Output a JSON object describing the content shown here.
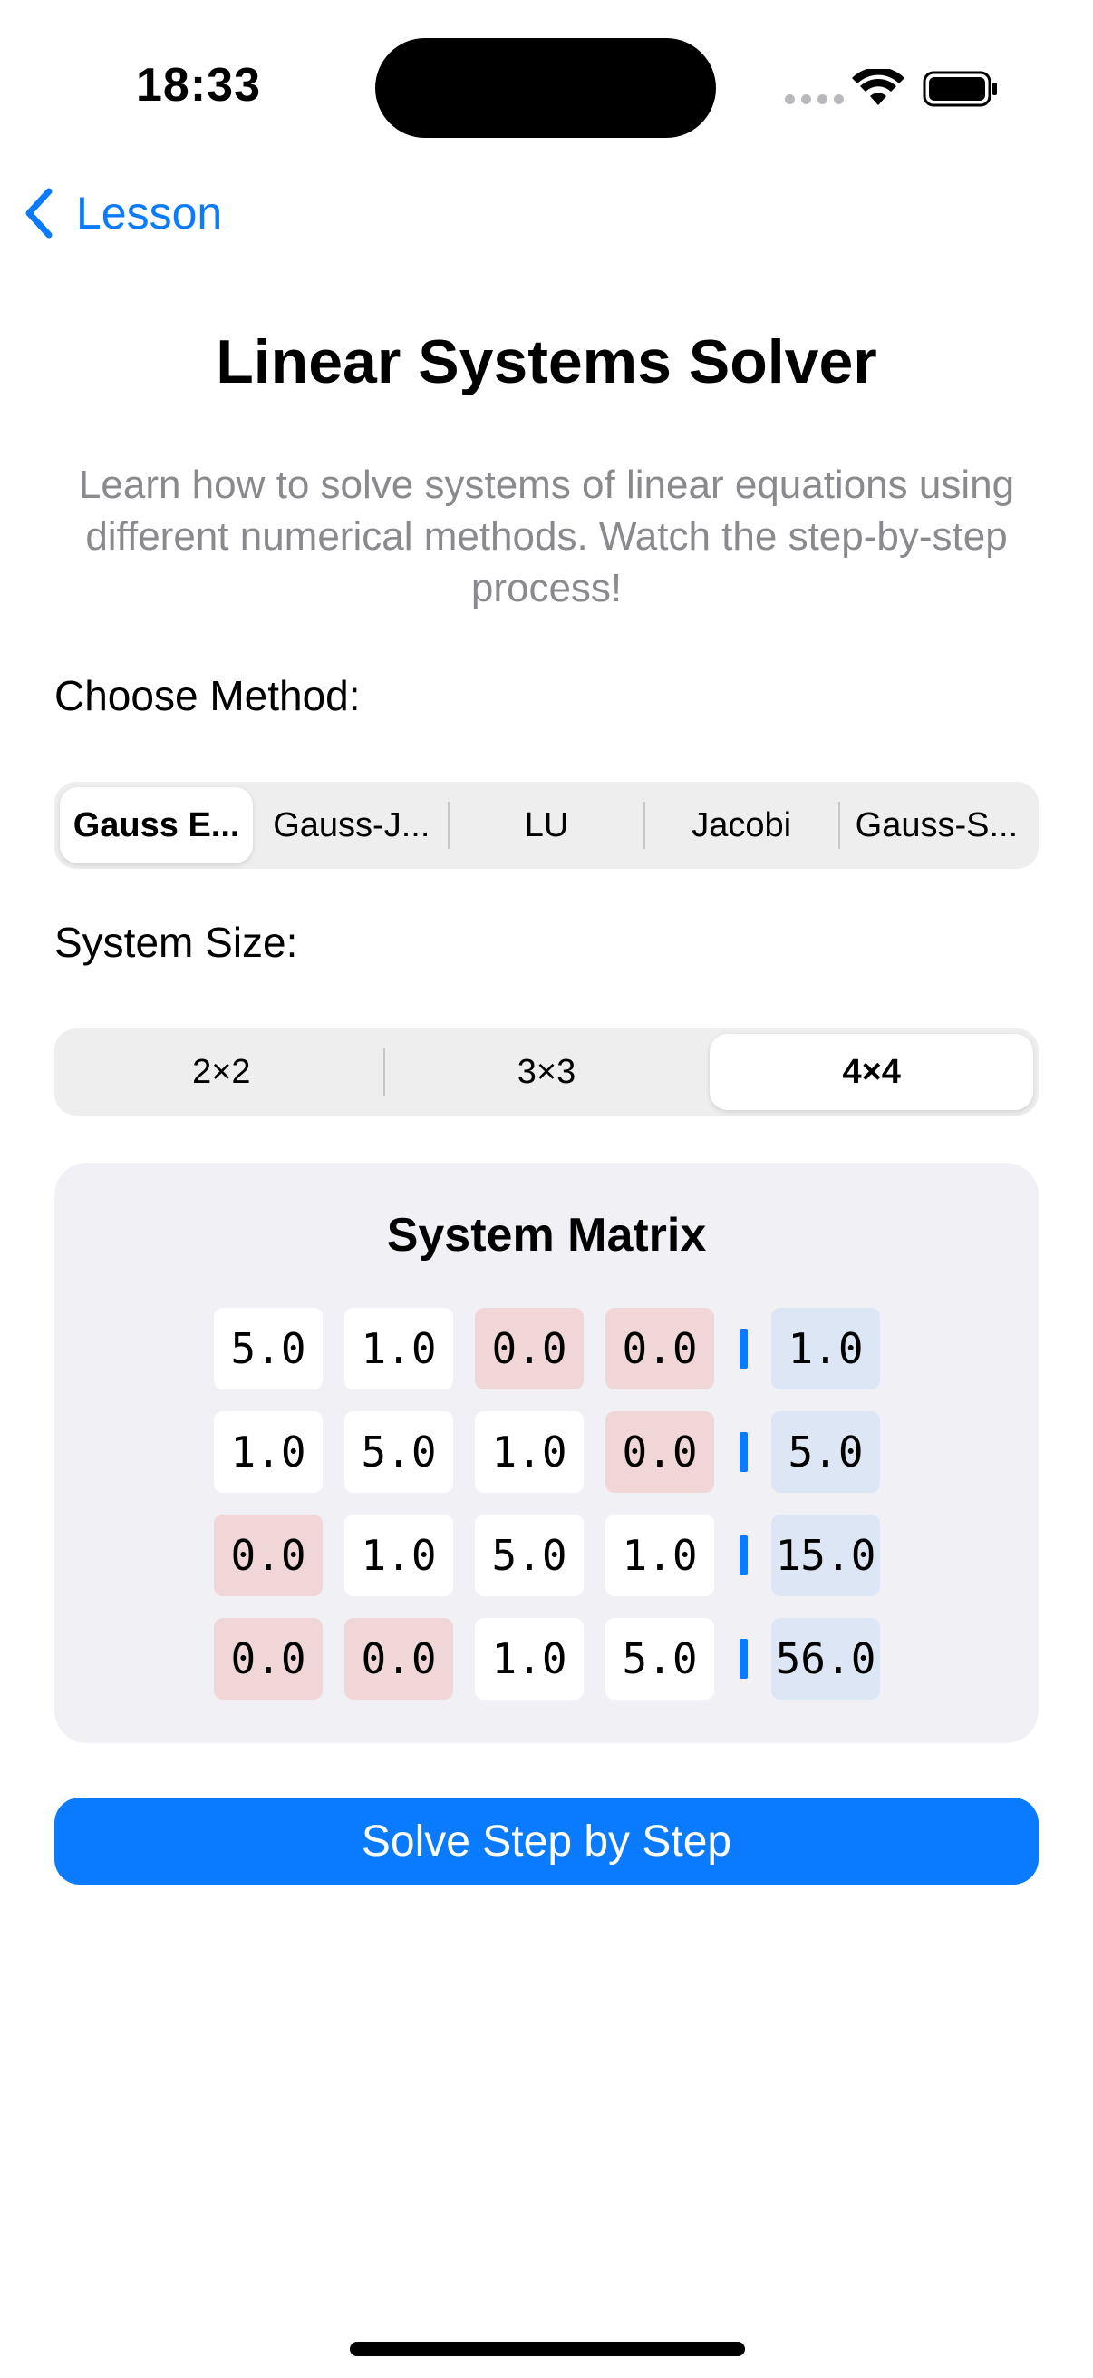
{
  "status": {
    "time": "18:33"
  },
  "nav": {
    "back_label": "Lesson"
  },
  "title": "Linear Systems Solver",
  "subtitle": "Learn how to solve systems of linear equations using different numerical methods. Watch the step-by-step process!",
  "method": {
    "label": "Choose Method:",
    "options": [
      "Gauss E...",
      "Gauss-J...",
      "LU",
      "Jacobi",
      "Gauss-S..."
    ],
    "selected": 0
  },
  "size": {
    "label": "System Size:",
    "options": [
      "2×2",
      "3×3",
      "4×4"
    ],
    "selected": 2
  },
  "matrix": {
    "title": "System Matrix",
    "rows": [
      {
        "a": [
          "5.0",
          "1.0",
          "0.0",
          "0.0"
        ],
        "b": "1.0"
      },
      {
        "a": [
          "1.0",
          "5.0",
          "1.0",
          "0.0"
        ],
        "b": "5.0"
      },
      {
        "a": [
          "0.0",
          "1.0",
          "5.0",
          "1.0"
        ],
        "b": "15.0"
      },
      {
        "a": [
          "0.0",
          "0.0",
          "1.0",
          "5.0"
        ],
        "b": "56.0"
      }
    ],
    "zero_highlight_color": "#f0d6d7",
    "rhs_highlight_color": "#dce6f5"
  },
  "solve_button": "Solve Step by Step",
  "colors": {
    "accent": "#0a7aff"
  }
}
